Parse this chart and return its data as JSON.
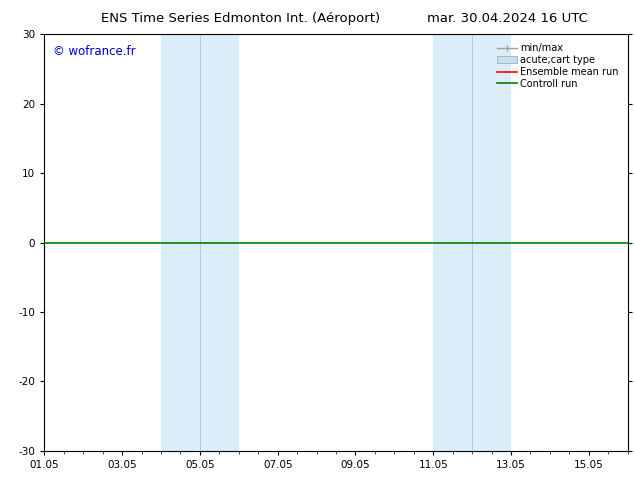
{
  "title_left": "ENS Time Series Edmonton Int. (Aéroport)",
  "title_right": "mar. 30.04.2024 16 UTC",
  "title_fontsize": 9.5,
  "watermark": "© wofrance.fr",
  "watermark_color": "#0000cc",
  "watermark_fontsize": 8.5,
  "ylim": [
    -30,
    30
  ],
  "yticks": [
    -30,
    -20,
    -10,
    0,
    10,
    20,
    30
  ],
  "xlim_start": 0,
  "xlim_end": 15,
  "xtick_labels": [
    "01.05",
    "03.05",
    "05.05",
    "07.05",
    "09.05",
    "11.05",
    "13.05",
    "15.05"
  ],
  "xtick_positions": [
    0,
    2,
    4,
    6,
    8,
    10,
    12,
    14
  ],
  "shaded_bands": [
    {
      "xmin": 3.0,
      "xmax": 4.0,
      "color": "#daedf8"
    },
    {
      "xmin": 4.0,
      "xmax": 5.0,
      "color": "#daedf8"
    },
    {
      "xmin": 10.0,
      "xmax": 11.0,
      "color": "#daedf8"
    },
    {
      "xmin": 11.0,
      "xmax": 12.0,
      "color": "#daedf8"
    }
  ],
  "hline_y": 0,
  "hline_color": "#008000",
  "hline_linewidth": 1.2,
  "ensemble_mean_color": "#ff0000",
  "control_run_color": "#008000",
  "minmax_color": "#a0a0a0",
  "acuteCart_color": "#c8dff0",
  "acuteCart_edge": "#a0a0a0",
  "background_color": "#ffffff",
  "axes_facecolor": "#ffffff",
  "legend_fontsize": 7,
  "tick_fontsize": 7.5,
  "spine_color": "#000000"
}
